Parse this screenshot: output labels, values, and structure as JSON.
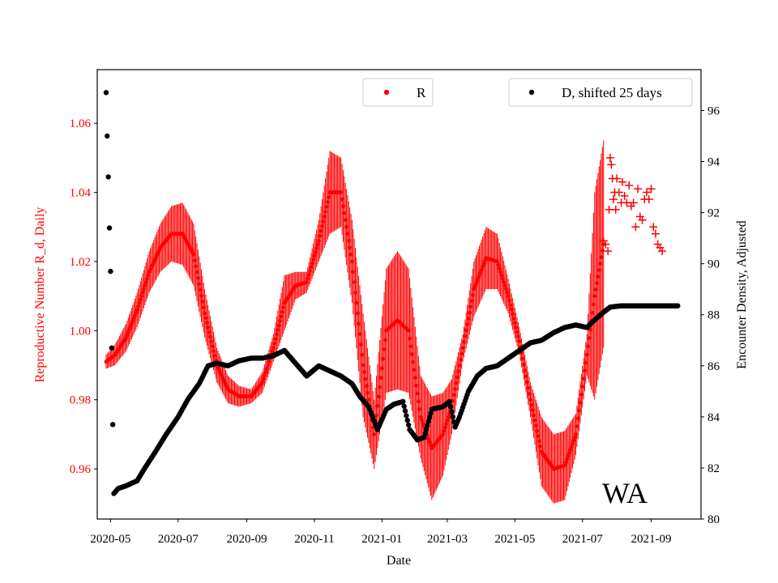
{
  "chart_data": {
    "type": "scatter",
    "annotation": "WA",
    "xlabel": "Date",
    "x_ticks": [
      "2020-05",
      "2020-07",
      "2020-09",
      "2020-11",
      "2021-01",
      "2021-03",
      "2021-05",
      "2021-07",
      "2021-09"
    ],
    "x_range": [
      "2020-04-19",
      "2021-10-16"
    ],
    "y_left": {
      "label": "Reproductive Number R_d, Daily",
      "color": "#ff0000",
      "range": [
        0.9455,
        1.0755
      ],
      "ticks": [
        "0.96",
        "0.98",
        "1.00",
        "1.02",
        "1.04",
        "1.06"
      ]
    },
    "y_right": {
      "label": "Encounter Density, Adjusted",
      "color": "#000000",
      "range": [
        80.0,
        97.6
      ],
      "ticks": [
        "80",
        "82",
        "84",
        "86",
        "88",
        "90",
        "92",
        "94",
        "96"
      ]
    },
    "legend": [
      {
        "label": "R",
        "color": "#ff0000",
        "placement": "top-center"
      },
      {
        "label": "D, shifted 25 days",
        "color": "#000000",
        "placement": "top-right"
      }
    ],
    "series": [
      {
        "name": "R",
        "axis": "left",
        "color": "#ff0000",
        "marker": "dot-with-errorbars",
        "points": [
          [
            "2020-04-27",
            0.991
          ],
          [
            "2020-05-05",
            0.993
          ],
          [
            "2020-05-15",
            0.998
          ],
          [
            "2020-05-25",
            1.006
          ],
          [
            "2020-06-05",
            1.017
          ],
          [
            "2020-06-15",
            1.024
          ],
          [
            "2020-06-25",
            1.028
          ],
          [
            "2020-07-05",
            1.028
          ],
          [
            "2020-07-15",
            1.022
          ],
          [
            "2020-07-25",
            1.005
          ],
          [
            "2020-08-05",
            0.99
          ],
          [
            "2020-08-15",
            0.983
          ],
          [
            "2020-08-25",
            0.981
          ],
          [
            "2020-09-05",
            0.981
          ],
          [
            "2020-09-15",
            0.985
          ],
          [
            "2020-09-25",
            0.995
          ],
          [
            "2020-10-05",
            1.008
          ],
          [
            "2020-10-15",
            1.013
          ],
          [
            "2020-10-25",
            1.014
          ],
          [
            "2020-11-05",
            1.026
          ],
          [
            "2020-11-15",
            1.04
          ],
          [
            "2020-11-25",
            1.04
          ],
          [
            "2020-12-05",
            1.02
          ],
          [
            "2020-12-15",
            0.99
          ],
          [
            "2020-12-25",
            0.97
          ],
          [
            "2021-01-05",
            1.0
          ],
          [
            "2021-01-15",
            1.003
          ],
          [
            "2021-01-25",
            1.0
          ],
          [
            "2021-02-05",
            0.975
          ],
          [
            "2021-02-15",
            0.966
          ],
          [
            "2021-02-25",
            0.97
          ],
          [
            "2021-03-05",
            0.978
          ],
          [
            "2021-03-15",
            0.995
          ],
          [
            "2021-03-25",
            1.012
          ],
          [
            "2021-04-05",
            1.021
          ],
          [
            "2021-04-15",
            1.02
          ],
          [
            "2021-04-25",
            1.01
          ],
          [
            "2021-05-05",
            0.997
          ],
          [
            "2021-05-15",
            0.98
          ],
          [
            "2021-05-25",
            0.965
          ],
          [
            "2021-06-05",
            0.96
          ],
          [
            "2021-06-15",
            0.961
          ],
          [
            "2021-06-25",
            0.97
          ],
          [
            "2021-07-05",
            0.993
          ],
          [
            "2021-07-12",
            1.01
          ],
          [
            "2021-07-20",
            1.025
          ]
        ],
        "errorbar_amplitude": [
          0.002,
          0.003,
          0.004,
          0.005,
          0.006,
          0.007,
          0.008,
          0.009,
          0.009,
          0.007,
          0.005,
          0.004,
          0.003,
          0.002,
          0.003,
          0.004,
          0.008,
          0.004,
          0.003,
          0.006,
          0.012,
          0.01,
          0.012,
          0.015,
          0.01,
          0.018,
          0.02,
          0.018,
          0.012,
          0.015,
          0.012,
          0.008,
          0.004,
          0.008,
          0.009,
          0.008,
          0.005,
          0.004,
          0.005,
          0.01,
          0.01,
          0.01,
          0.006,
          0.006,
          0.03,
          0.03
        ]
      },
      {
        "name": "R (projected)",
        "axis": "left",
        "color": "#ff0000",
        "marker": "plus",
        "points": [
          [
            "2021-07-20",
            1.026
          ],
          [
            "2021-07-22",
            1.025
          ],
          [
            "2021-07-24",
            1.023
          ],
          [
            "2021-07-25",
            1.035
          ],
          [
            "2021-07-26",
            1.05
          ],
          [
            "2021-07-27",
            1.048
          ],
          [
            "2021-07-28",
            1.044
          ],
          [
            "2021-07-29",
            1.038
          ],
          [
            "2021-07-30",
            1.04
          ],
          [
            "2021-07-31",
            1.035
          ],
          [
            "2021-08-01",
            1.044
          ],
          [
            "2021-08-03",
            1.04
          ],
          [
            "2021-08-05",
            1.037
          ],
          [
            "2021-08-06",
            1.043
          ],
          [
            "2021-08-08",
            1.039
          ],
          [
            "2021-08-10",
            1.037
          ],
          [
            "2021-08-12",
            1.042
          ],
          [
            "2021-08-14",
            1.036
          ],
          [
            "2021-08-16",
            1.037
          ],
          [
            "2021-08-18",
            1.03
          ],
          [
            "2021-08-20",
            1.041
          ],
          [
            "2021-08-22",
            1.033
          ],
          [
            "2021-08-24",
            1.032
          ],
          [
            "2021-08-26",
            1.038
          ],
          [
            "2021-08-28",
            1.04
          ],
          [
            "2021-08-30",
            1.038
          ],
          [
            "2021-09-01",
            1.041
          ],
          [
            "2021-09-03",
            1.03
          ],
          [
            "2021-09-05",
            1.028
          ],
          [
            "2021-09-07",
            1.025
          ],
          [
            "2021-09-09",
            1.024
          ],
          [
            "2021-09-11",
            1.023
          ]
        ]
      },
      {
        "name": "D, shifted 25 days",
        "axis": "right",
        "color": "#000000",
        "marker": "dot",
        "points": [
          [
            "2020-04-27",
            96.7
          ],
          [
            "2020-04-28",
            95.0
          ],
          [
            "2020-04-29",
            93.4
          ],
          [
            "2020-04-30",
            91.4
          ],
          [
            "2020-05-01",
            89.7
          ],
          [
            "2020-05-02",
            86.7
          ],
          [
            "2020-05-03",
            83.7
          ],
          [
            "2020-05-04",
            81.0
          ],
          [
            "2020-05-08",
            81.2
          ],
          [
            "2020-05-15",
            81.3
          ],
          [
            "2020-05-25",
            81.5
          ],
          [
            "2020-06-01",
            82.0
          ],
          [
            "2020-06-10",
            82.6
          ],
          [
            "2020-06-20",
            83.3
          ],
          [
            "2020-07-01",
            84.0
          ],
          [
            "2020-07-10",
            84.7
          ],
          [
            "2020-07-20",
            85.3
          ],
          [
            "2020-07-28",
            86.0
          ],
          [
            "2020-08-05",
            86.1
          ],
          [
            "2020-08-15",
            86.0
          ],
          [
            "2020-08-25",
            86.2
          ],
          [
            "2020-09-05",
            86.3
          ],
          [
            "2020-09-15",
            86.3
          ],
          [
            "2020-09-25",
            86.4
          ],
          [
            "2020-10-05",
            86.6
          ],
          [
            "2020-10-15",
            86.1
          ],
          [
            "2020-10-25",
            85.6
          ],
          [
            "2020-11-05",
            86.0
          ],
          [
            "2020-11-15",
            85.8
          ],
          [
            "2020-11-25",
            85.6
          ],
          [
            "2020-12-05",
            85.3
          ],
          [
            "2020-12-12",
            84.8
          ],
          [
            "2020-12-20",
            84.4
          ],
          [
            "2020-12-28",
            83.5
          ],
          [
            "2021-01-05",
            84.3
          ],
          [
            "2021-01-12",
            84.5
          ],
          [
            "2021-01-20",
            84.6
          ],
          [
            "2021-01-26",
            83.5
          ],
          [
            "2021-02-02",
            83.1
          ],
          [
            "2021-02-08",
            83.2
          ],
          [
            "2021-02-15",
            84.3
          ],
          [
            "2021-02-25",
            84.4
          ],
          [
            "2021-03-03",
            84.6
          ],
          [
            "2021-03-08",
            83.6
          ],
          [
            "2021-03-12",
            84.0
          ],
          [
            "2021-03-20",
            85.0
          ],
          [
            "2021-03-28",
            85.6
          ],
          [
            "2021-04-05",
            85.9
          ],
          [
            "2021-04-15",
            86.0
          ],
          [
            "2021-04-25",
            86.3
          ],
          [
            "2021-05-05",
            86.6
          ],
          [
            "2021-05-15",
            86.9
          ],
          [
            "2021-05-25",
            87.0
          ],
          [
            "2021-06-05",
            87.3
          ],
          [
            "2021-06-15",
            87.5
          ],
          [
            "2021-06-25",
            87.6
          ],
          [
            "2021-07-05",
            87.5
          ],
          [
            "2021-07-12",
            87.8
          ],
          [
            "2021-07-20",
            88.1
          ],
          [
            "2021-07-26",
            88.3
          ],
          [
            "2021-08-05",
            88.35
          ],
          [
            "2021-08-15",
            88.35
          ],
          [
            "2021-08-25",
            88.35
          ],
          [
            "2021-09-05",
            88.35
          ],
          [
            "2021-09-15",
            88.35
          ],
          [
            "2021-09-25",
            88.35
          ]
        ]
      }
    ]
  }
}
